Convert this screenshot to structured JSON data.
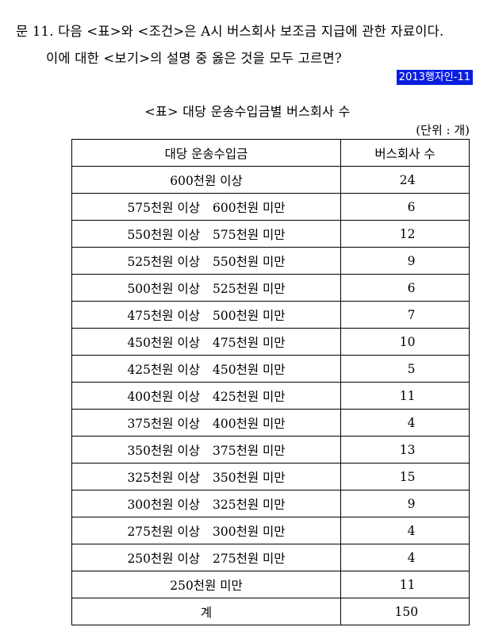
{
  "question": {
    "line1": "문 11. 다음 <표>와 <조건>은 A시 버스회사 보조금 지급에 관한 자료이다.",
    "line2": "이에 대한 <보기>의 설명 중 옳은 것을 모두 고르면?"
  },
  "source_tag": "2013행자인-11",
  "table": {
    "title": "<표> 대당 운송수입금별 버스회사 수",
    "unit": "(단위 : 개)",
    "headers": [
      "대당 운송수입금",
      "버스회사 수"
    ],
    "rows": [
      {
        "from": "600천원 이상",
        "to": "",
        "count": "24"
      },
      {
        "from": "575천원 이상",
        "to": "600천원 미만",
        "count": "6"
      },
      {
        "from": "550천원 이상",
        "to": "575천원 미만",
        "count": "12"
      },
      {
        "from": "525천원 이상",
        "to": "550천원 미만",
        "count": "9"
      },
      {
        "from": "500천원 이상",
        "to": "525천원 미만",
        "count": "6"
      },
      {
        "from": "475천원 이상",
        "to": "500천원 미만",
        "count": "7"
      },
      {
        "from": "450천원 이상",
        "to": "475천원 미만",
        "count": "10"
      },
      {
        "from": "425천원 이상",
        "to": "450천원 미만",
        "count": "5"
      },
      {
        "from": "400천원 이상",
        "to": "425천원 미만",
        "count": "11"
      },
      {
        "from": "375천원 이상",
        "to": "400천원 미만",
        "count": "4"
      },
      {
        "from": "350천원 이상",
        "to": "375천원 미만",
        "count": "13"
      },
      {
        "from": "325천원 이상",
        "to": "350천원 미만",
        "count": "15"
      },
      {
        "from": "300천원 이상",
        "to": "325천원 미만",
        "count": "9"
      },
      {
        "from": "275천원 이상",
        "to": "300천원 미만",
        "count": "4"
      },
      {
        "from": "250천원 이상",
        "to": "275천원 미만",
        "count": "4"
      },
      {
        "from": "250천원 미만",
        "to": "",
        "count": "11"
      }
    ],
    "total": {
      "label": "계",
      "count": "150"
    }
  }
}
